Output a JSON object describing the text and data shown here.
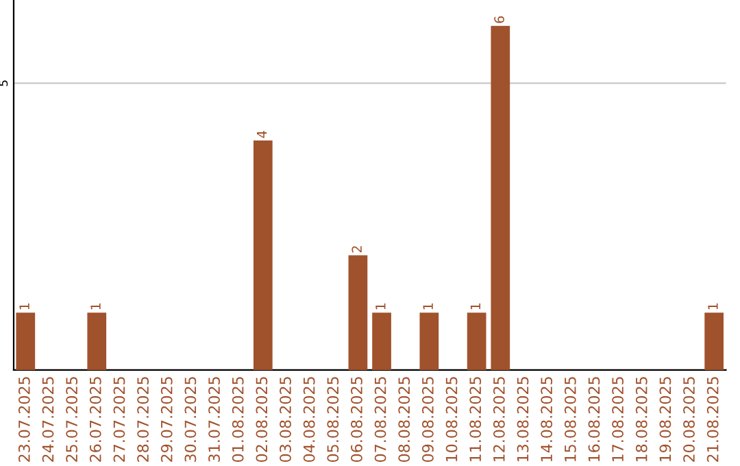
{
  "chart_data": {
    "type": "bar",
    "categories": [
      "23.07.2025",
      "24.07.2025",
      "25.07.2025",
      "26.07.2025",
      "27.07.2025",
      "28.07.2025",
      "29.07.2025",
      "30.07.2025",
      "31.07.2025",
      "01.08.2025",
      "02.08.2025",
      "03.08.2025",
      "04.08.2025",
      "05.08.2025",
      "06.08.2025",
      "07.08.2025",
      "08.08.2025",
      "09.08.2025",
      "10.08.2025",
      "11.08.2025",
      "12.08.2025",
      "13.08.2025",
      "14.08.2025",
      "15.08.2025",
      "16.08.2025",
      "17.08.2025",
      "18.08.2025",
      "19.08.2025",
      "20.08.2025",
      "21.08.2025"
    ],
    "values": [
      1,
      0,
      0,
      1,
      0,
      0,
      0,
      0,
      0,
      0,
      4,
      0,
      0,
      0,
      2,
      1,
      0,
      1,
      0,
      1,
      6,
      0,
      0,
      0,
      0,
      0,
      0,
      0,
      0,
      1
    ],
    "value_labels": [
      "1",
      null,
      null,
      "1",
      null,
      null,
      null,
      null,
      null,
      null,
      "4",
      null,
      null,
      null,
      "2",
      "1",
      null,
      "1",
      null,
      "1",
      "6",
      null,
      null,
      null,
      null,
      null,
      null,
      null,
      null,
      "1"
    ],
    "color": "#a0522d",
    "ylim": [
      0,
      6.45
    ],
    "yticks": [
      5
    ],
    "grid": "y"
  }
}
